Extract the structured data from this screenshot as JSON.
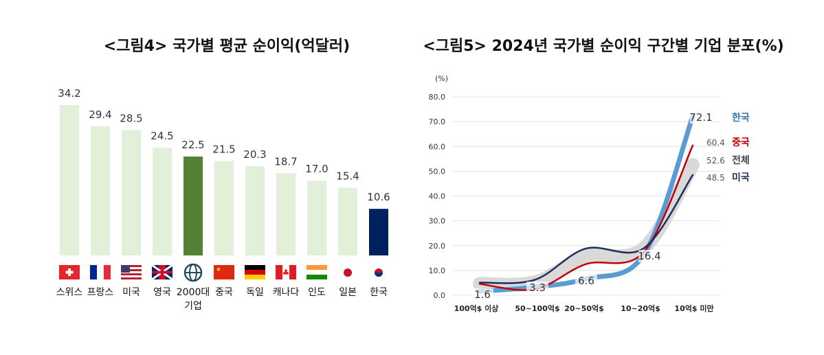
{
  "chart_data": [
    {
      "type": "bar",
      "title": "<그림4> 국가별 평균 순이익(억달러)",
      "categories": [
        "스위스",
        "프랑스",
        "미국",
        "영국",
        "2000대 기업",
        "중국",
        "독일",
        "캐나다",
        "인도",
        "일본",
        "한국"
      ],
      "flags": [
        "switzerland",
        "france",
        "usa",
        "uk",
        "globe-icon",
        "china",
        "germany",
        "canada",
        "india",
        "japan",
        "korea"
      ],
      "values": [
        34.2,
        29.4,
        28.5,
        24.5,
        22.5,
        21.5,
        20.3,
        18.7,
        17.0,
        15.4,
        10.6
      ],
      "value_labels": [
        "34.2",
        "29.4",
        "28.5",
        "24.5",
        "22.5",
        "21.5",
        "20.3",
        "18.7",
        "17.0",
        "15.4",
        "10.6"
      ],
      "colors": {
        "default": "#e2efd9",
        "highlight_2000": "#548235",
        "highlight_korea": "#002060"
      },
      "ylim": [
        0,
        35
      ]
    },
    {
      "type": "line",
      "title": "<그림5> 2024년 국가별 순이익 구간별 기업 분포(%)",
      "ylabel": "(%)",
      "ylim": [
        0,
        80
      ],
      "yticks": [
        "0.0",
        "10.0",
        "20.0",
        "30.0",
        "40.0",
        "50.0",
        "60.0",
        "70.0",
        "80.0"
      ],
      "grid": true,
      "categories": [
        "100억$ 이상",
        "50~100억$",
        "20~50억$",
        "10~20억$",
        "10억$ 미만"
      ],
      "series": [
        {
          "name": "전체",
          "color": "#d9d9d9",
          "values": [
            4.6,
            5.2,
            15.5,
            19.0,
            52.6
          ],
          "end_label": "52.6"
        },
        {
          "name": "한국",
          "color": "#5b9bd5",
          "values": [
            1.6,
            3.3,
            6.6,
            16.4,
            72.1
          ],
          "labels": [
            "1.6",
            "3.3",
            "6.6",
            "16.4",
            "72.1"
          ]
        },
        {
          "name": "중국",
          "color": "#c00000",
          "values": [
            4.6,
            2.4,
            12.5,
            17.5,
            60.4
          ],
          "end_label": "60.4"
        },
        {
          "name": "미국",
          "color": "#1f2d5c",
          "values": [
            5.1,
            6.2,
            18.8,
            19.0,
            48.5
          ],
          "end_label": "48.5"
        }
      ]
    }
  ]
}
